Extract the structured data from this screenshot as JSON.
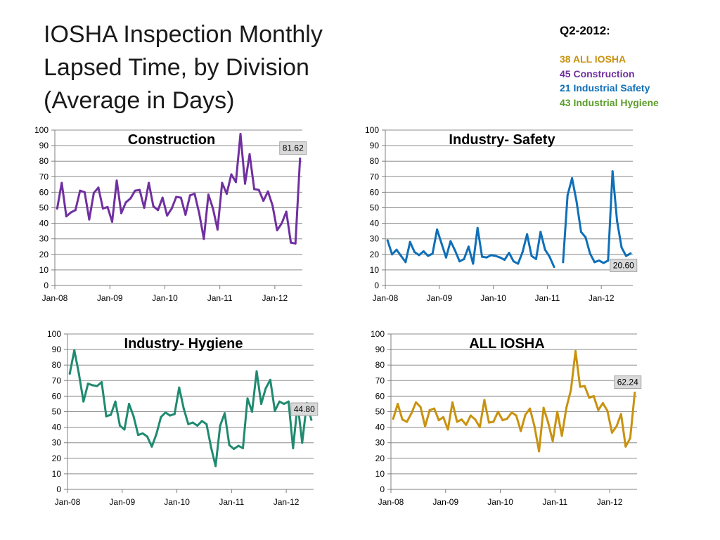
{
  "title_lines": [
    "IOSHA Inspection Monthly",
    "Lapsed Time, by Division",
    "(Average in Days)"
  ],
  "summary": {
    "heading": "Q2-2012:",
    "lines": [
      {
        "text": "38 ALL IOSHA",
        "color": "#c9920f"
      },
      {
        "text": "45 Construction",
        "color": "#7030a0"
      },
      {
        "text": "21 Industrial Safety",
        "color": "#0e6fb8"
      },
      {
        "text": "43 Industrial Hygiene",
        "color": "#5b9c2a"
      }
    ]
  },
  "chart_data": [
    {
      "type": "line",
      "title": "Construction",
      "x_ticks": [
        "Jan-08",
        "Jan-09",
        "Jan-10",
        "Jan-11",
        "Jan-12"
      ],
      "ylim": [
        0,
        100
      ],
      "y_ticks": [
        "0",
        "10",
        "20",
        "30",
        "40",
        "50",
        "60",
        "70",
        "80",
        "90",
        "100"
      ],
      "grid": true,
      "color": "#7030a0",
      "callout": {
        "label": "81.62",
        "position": "above-last-point"
      },
      "series": [
        {
          "values": [
            49.5,
            66,
            44.5,
            47,
            48.5,
            61,
            60,
            42.5,
            59.5,
            63,
            49.5,
            50.5,
            41,
            67.5,
            46.5,
            53.5,
            56,
            61,
            61.5,
            50,
            66,
            51,
            48.5,
            56.5,
            45,
            49.5,
            57,
            56.5,
            45.5,
            58,
            59,
            46.5,
            30,
            58.5,
            49.5,
            36,
            66,
            59,
            71.5,
            66.5,
            97.5,
            65.5,
            84.5,
            62,
            61.5,
            54.5,
            60.5,
            51.5,
            35.5,
            40,
            47.5,
            27.5,
            27,
            81.6
          ]
        }
      ]
    },
    {
      "type": "line",
      "title": "Industry- Safety",
      "x_ticks": [
        "Jan-08",
        "Jan-09",
        "Jan-10",
        "Jan-11",
        "Jan-12"
      ],
      "ylim": [
        0,
        100
      ],
      "y_ticks": [
        "0",
        "10",
        "20",
        "30",
        "40",
        "50",
        "60",
        "70",
        "80",
        "90",
        "100"
      ],
      "grid": true,
      "color": "#0e6fb8",
      "callout": {
        "label": "20.60",
        "position": "below-last-point"
      },
      "series": [
        {
          "values": [
            29,
            20,
            23,
            19,
            15,
            28,
            21.5,
            19.5,
            22,
            19,
            20.5,
            36,
            27,
            18,
            28.5,
            22.5,
            15.5,
            17,
            25,
            14,
            37,
            18.5,
            18,
            19.5,
            19,
            18,
            16.5,
            21,
            15.5,
            14,
            21.5,
            33,
            19,
            17,
            34.5,
            23,
            18.5,
            12,
            null,
            15,
            58,
            69,
            54,
            34.5,
            31,
            20.5,
            15,
            16,
            14.5,
            16,
            73.5,
            41.5,
            24.5,
            19,
            20.6
          ]
        }
      ]
    },
    {
      "type": "line",
      "title": "Industry- Hygiene",
      "x_ticks": [
        "Jan-08",
        "Jan-09",
        "Jan-10",
        "Jan-11",
        "Jan-12"
      ],
      "ylim": [
        0,
        100
      ],
      "y_ticks": [
        "0",
        "10",
        "20",
        "30",
        "40",
        "50",
        "60",
        "70",
        "80",
        "90",
        "100"
      ],
      "grid": true,
      "color": "#1f8a70",
      "callout": {
        "label": "44.80",
        "position": "above-last-point"
      },
      "series": [
        {
          "values": [
            74.5,
            89.5,
            74.5,
            56.5,
            68,
            67,
            66.5,
            69,
            47,
            48,
            56.5,
            41,
            38.5,
            55,
            47,
            35,
            36,
            34,
            27.5,
            35.5,
            46.5,
            49.5,
            47.5,
            48.5,
            65.5,
            52,
            42,
            43,
            41,
            44,
            42,
            27,
            15,
            41,
            49,
            28.5,
            26,
            28,
            26.5,
            58.5,
            50,
            76,
            55,
            65,
            70.5,
            50.5,
            56.5,
            55,
            56.5,
            26.5,
            55,
            30,
            55.5,
            44.8
          ]
        }
      ]
    },
    {
      "type": "line",
      "title": "ALL IOSHA",
      "x_ticks": [
        "Jan-08",
        "Jan-09",
        "Jan-10",
        "Jan-11",
        "Jan-12"
      ],
      "ylim": [
        0,
        100
      ],
      "y_ticks": [
        "0",
        "10",
        "20",
        "30",
        "40",
        "50",
        "60",
        "70",
        "80",
        "90",
        "100"
      ],
      "grid": true,
      "color": "#c9920f",
      "callout": {
        "label": "62.24",
        "position": "above-last-point"
      },
      "series": [
        {
          "values": [
            45.5,
            55,
            45,
            43.5,
            49,
            56,
            53,
            40.5,
            51,
            52,
            44.5,
            46.5,
            38.5,
            56,
            43.5,
            45,
            41.5,
            47.5,
            45,
            40,
            57.5,
            43,
            43.5,
            50,
            44.5,
            45.5,
            49.5,
            47.5,
            37.5,
            48,
            52,
            40.5,
            24.5,
            52.5,
            43,
            31,
            50,
            34.5,
            52.5,
            64,
            89,
            66,
            66.5,
            59,
            60,
            51,
            55.5,
            50.5,
            36.5,
            40.5,
            48.5,
            27.5,
            33,
            62.2
          ]
        }
      ]
    }
  ]
}
